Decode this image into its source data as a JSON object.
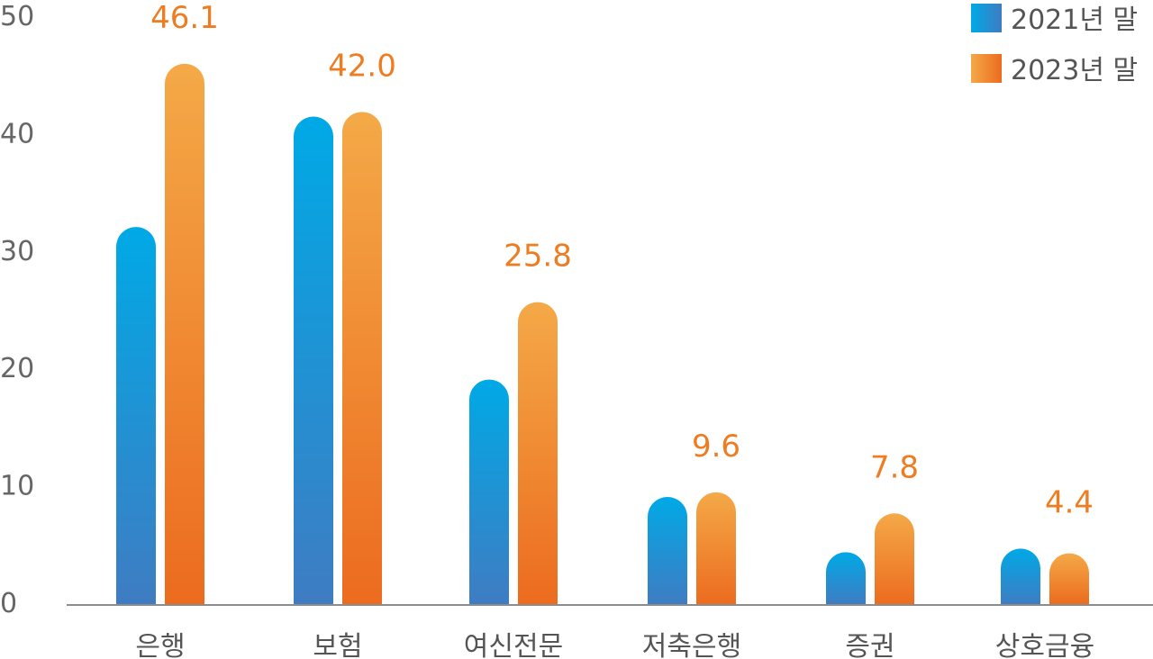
{
  "chart_data": {
    "type": "bar",
    "categories": [
      "은행",
      "보험",
      "여신전문",
      "저축은행",
      "증권",
      "상호금융"
    ],
    "series": [
      {
        "name": "2021년 말",
        "values": [
          32.2,
          41.6,
          19.2,
          9.2,
          4.5,
          4.8
        ],
        "color_top": "#00a9e6",
        "color_bottom": "#3f7cc2"
      },
      {
        "name": "2023년 말",
        "values": [
          46.1,
          42.0,
          25.8,
          9.6,
          7.8,
          4.4
        ],
        "color_top": "#f4a947",
        "color_bottom": "#ec6b1f"
      }
    ],
    "data_labels": [
      "46.1",
      "42.0",
      "25.8",
      "9.6",
      "7.8",
      "4.4"
    ],
    "ylim": [
      0,
      50
    ],
    "yticks": [
      0,
      10,
      20,
      30,
      40,
      50
    ],
    "grid": false,
    "legend_position": "top-right",
    "title": "",
    "xlabel": "",
    "ylabel": ""
  }
}
